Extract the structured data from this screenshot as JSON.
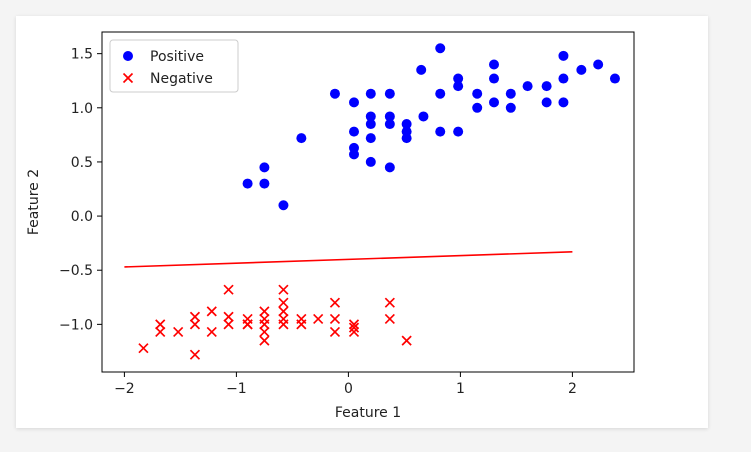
{
  "chart_data": {
    "type": "scatter",
    "title": "",
    "xlabel": "Feature 1",
    "ylabel": "Feature 2",
    "xlim": [
      -2.2,
      2.55
    ],
    "ylim": [
      -1.44,
      1.7
    ],
    "xticks": [
      -2,
      -1,
      0,
      1,
      2
    ],
    "yticks": [
      -1.0,
      -0.5,
      0.0,
      0.5,
      1.0,
      1.5
    ],
    "xtick_labels": [
      "−2",
      "−1",
      "0",
      "1",
      "2"
    ],
    "ytick_labels": [
      "−1.0",
      "−0.5",
      "0.0",
      "0.5",
      "1.0",
      "1.5"
    ],
    "grid": false,
    "legend_position": "top-left",
    "series": [
      {
        "name": "Positive",
        "marker": "circle",
        "color": "#0000ff",
        "x": [
          -0.9,
          -0.75,
          -0.75,
          -0.58,
          -0.42,
          -0.12,
          0.05,
          0.05,
          0.05,
          0.05,
          0.2,
          0.2,
          0.2,
          0.2,
          0.2,
          0.37,
          0.37,
          0.37,
          0.37,
          0.52,
          0.52,
          0.52,
          0.65,
          0.67,
          0.82,
          0.82,
          0.82,
          0.98,
          0.98,
          0.98,
          1.15,
          1.15,
          1.3,
          1.3,
          1.3,
          1.45,
          1.45,
          1.6,
          1.77,
          1.77,
          1.92,
          1.92,
          1.92,
          2.08,
          2.23,
          2.38
        ],
        "y": [
          0.3,
          0.3,
          0.45,
          0.1,
          0.72,
          1.13,
          0.57,
          0.63,
          0.78,
          1.05,
          0.5,
          0.72,
          0.85,
          0.92,
          1.13,
          0.45,
          0.85,
          0.92,
          1.13,
          0.72,
          0.78,
          0.85,
          1.35,
          0.92,
          1.55,
          1.13,
          0.78,
          0.78,
          1.2,
          1.27,
          1.0,
          1.13,
          1.05,
          1.27,
          1.4,
          1.0,
          1.13,
          1.2,
          1.2,
          1.05,
          1.05,
          1.27,
          1.48,
          1.35,
          1.4,
          1.27
        ]
      },
      {
        "name": "Negative",
        "marker": "x",
        "color": "#ff0000",
        "x": [
          -1.83,
          -1.68,
          -1.68,
          -1.52,
          -1.37,
          -1.37,
          -1.37,
          -1.22,
          -1.22,
          -1.07,
          -1.07,
          -1.07,
          -0.9,
          -0.9,
          -0.9,
          -0.75,
          -0.75,
          -0.75,
          -0.75,
          -0.75,
          -0.58,
          -0.58,
          -0.58,
          -0.58,
          -0.58,
          -0.42,
          -0.42,
          -0.27,
          -0.12,
          -0.12,
          -0.12,
          0.05,
          0.05,
          0.05,
          0.37,
          0.37,
          0.52
        ],
        "y": [
          -1.22,
          -1.07,
          -1.0,
          -1.07,
          -0.93,
          -1.0,
          -1.28,
          -0.88,
          -1.07,
          -0.68,
          -0.93,
          -1.0,
          -0.95,
          -1.0,
          -1.0,
          -0.88,
          -0.95,
          -1.0,
          -1.07,
          -1.15,
          -0.68,
          -0.8,
          -0.88,
          -0.95,
          -1.0,
          -0.95,
          -1.0,
          -0.95,
          -0.8,
          -0.95,
          -1.07,
          -1.0,
          -1.03,
          -1.07,
          -0.8,
          -0.95,
          -1.15
        ]
      }
    ],
    "lines": [
      {
        "name": "",
        "color": "#ff0000",
        "x": [
          -2.0,
          2.0
        ],
        "y": [
          -0.47,
          -0.33
        ]
      }
    ]
  }
}
